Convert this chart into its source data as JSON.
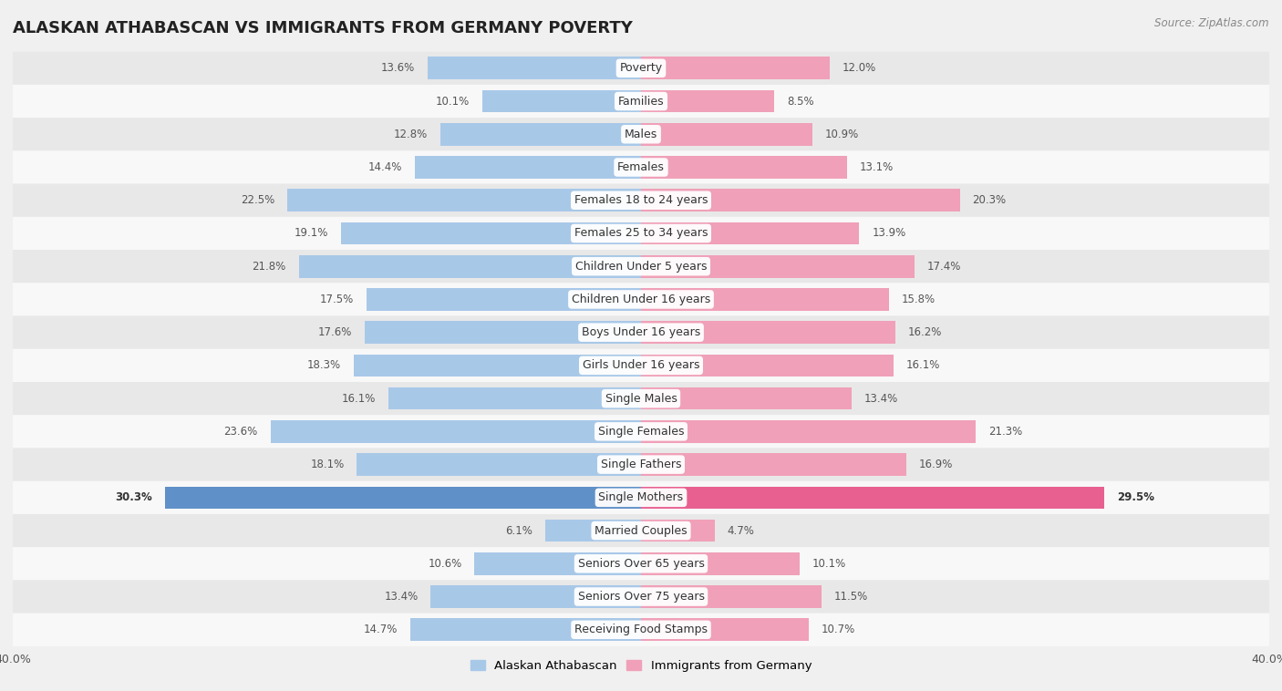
{
  "title": "ALASKAN ATHABASCAN VS IMMIGRANTS FROM GERMANY POVERTY",
  "source": "Source: ZipAtlas.com",
  "categories": [
    "Poverty",
    "Families",
    "Males",
    "Females",
    "Females 18 to 24 years",
    "Females 25 to 34 years",
    "Children Under 5 years",
    "Children Under 16 years",
    "Boys Under 16 years",
    "Girls Under 16 years",
    "Single Males",
    "Single Females",
    "Single Fathers",
    "Single Mothers",
    "Married Couples",
    "Seniors Over 65 years",
    "Seniors Over 75 years",
    "Receiving Food Stamps"
  ],
  "left_values": [
    13.6,
    10.1,
    12.8,
    14.4,
    22.5,
    19.1,
    21.8,
    17.5,
    17.6,
    18.3,
    16.1,
    23.6,
    18.1,
    30.3,
    6.1,
    10.6,
    13.4,
    14.7
  ],
  "right_values": [
    12.0,
    8.5,
    10.9,
    13.1,
    20.3,
    13.9,
    17.4,
    15.8,
    16.2,
    16.1,
    13.4,
    21.3,
    16.9,
    29.5,
    4.7,
    10.1,
    11.5,
    10.7
  ],
  "left_color": "#a8c8e8",
  "right_color": "#f0a0b8",
  "left_highlight_color": "#6090c8",
  "right_highlight_color": "#e86090",
  "highlight_index": 13,
  "left_label": "Alaskan Athabascan",
  "right_label": "Immigrants from Germany",
  "bar_height": 0.68,
  "xlim": 40.0,
  "bg_color": "#f0f0f0",
  "row_colors": [
    "#e8e8e8",
    "#f8f8f8"
  ],
  "label_fontsize": 9.0,
  "value_fontsize": 8.5,
  "title_fontsize": 13,
  "highlight_value_color": "#333333",
  "normal_value_color": "#555555"
}
